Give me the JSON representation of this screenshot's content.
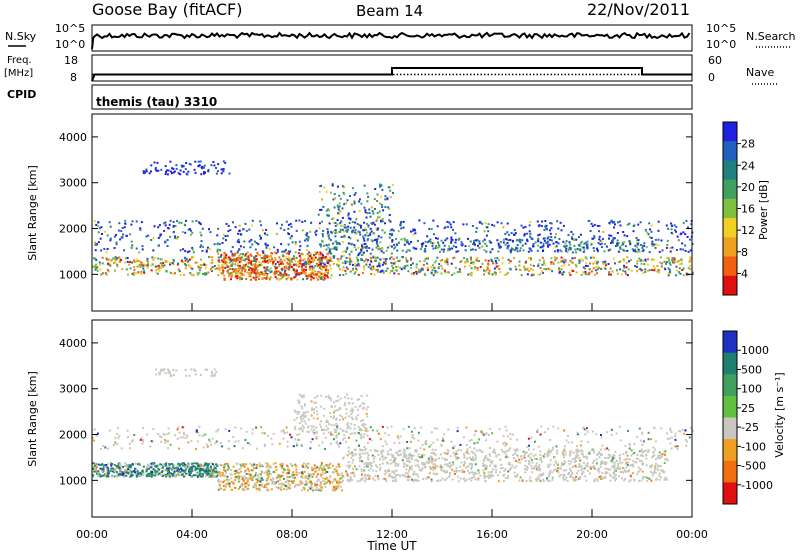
{
  "header": {
    "station": "Goose Bay (fitACF)",
    "beam": "Beam 14",
    "date": "22/Nov/2011"
  },
  "sky_panel": {
    "left_label": "N.Sky",
    "left_ticks": [
      "10^5",
      "10^0"
    ],
    "right_label": "N.Search",
    "right_ticks": [
      "10^5",
      "10^0"
    ]
  },
  "freq_panel": {
    "left_label_1": "Freq.",
    "left_label_2": "[MHz]",
    "left_ticks": [
      "18",
      "8"
    ],
    "right_label": "Nave",
    "right_ticks": [
      "60",
      "0"
    ]
  },
  "cpid_panel": {
    "left_label": "CPID",
    "text": "themis (tau) 3310"
  },
  "x_axis": {
    "label": "Time UT",
    "ticks": [
      "00:00",
      "04:00",
      "08:00",
      "12:00",
      "16:00",
      "20:00",
      "00:00"
    ]
  },
  "power_panel": {
    "ylabel": "Slant Range [km]",
    "yticks": [
      "4000",
      "3000",
      "2000",
      "1000"
    ],
    "colorbar_label": "Power [dB]",
    "colorbar_ticks": [
      "28",
      "24",
      "20",
      "16",
      "12",
      "8",
      "4"
    ],
    "colors": [
      "#2020e0",
      "#2060c0",
      "#208080",
      "#40a060",
      "#80c040",
      "#f0d020",
      "#f0a020",
      "#f06010",
      "#e01010"
    ]
  },
  "velocity_panel": {
    "ylabel": "Slant Range [km]",
    "yticks": [
      "4000",
      "3000",
      "2000",
      "1000"
    ],
    "colorbar_label": "Velocity [m s⁻¹]",
    "colorbar_ticks": [
      "1000",
      "500",
      "100",
      "25",
      "-25",
      "-100",
      "-500",
      "-1000"
    ],
    "colors": [
      "#2030c0",
      "#208070",
      "#40a060",
      "#60c040",
      "#c8c8c0",
      "#f0a020",
      "#f07010",
      "#e01010"
    ]
  },
  "chart_data": [
    {
      "type": "line",
      "title": "N.Sky / N.Search",
      "x_range_hours": [
        0,
        24
      ],
      "series": [
        {
          "name": "N.Sky",
          "style": "solid"
        },
        {
          "name": "N.Search",
          "style": "dotted"
        }
      ]
    },
    {
      "type": "line",
      "title": "Freq. [MHz] / Nave",
      "x_range_hours": [
        0,
        24
      ],
      "ylim_left": [
        8,
        18
      ],
      "ylim_right": [
        0,
        60
      ],
      "series": [
        {
          "name": "Freq.",
          "style": "solid",
          "x": [
            0,
            0.1,
            12,
            12,
            22,
            22,
            24
          ],
          "y": [
            8,
            10.5,
            10.5,
            13,
            13,
            10.5,
            10.5
          ]
        },
        {
          "name": "Nave",
          "style": "dotted",
          "x": [
            0,
            24
          ],
          "y": [
            15,
            15
          ]
        }
      ]
    },
    {
      "type": "heatmap",
      "title": "Power [dB]",
      "xlabel": "Time UT",
      "ylabel": "Slant Range [km]",
      "x_range_hours": [
        0,
        24
      ],
      "ylim": [
        200,
        4500
      ],
      "color_ticks": [
        28,
        24,
        20,
        16,
        12,
        8,
        4
      ]
    },
    {
      "type": "heatmap",
      "title": "Velocity [m s-1]",
      "xlabel": "Time UT",
      "ylabel": "Slant Range [km]",
      "x_range_hours": [
        0,
        24
      ],
      "ylim": [
        200,
        4500
      ],
      "color_ticks": [
        1000,
        500,
        100,
        25,
        -25,
        -100,
        -500,
        -1000
      ]
    }
  ]
}
